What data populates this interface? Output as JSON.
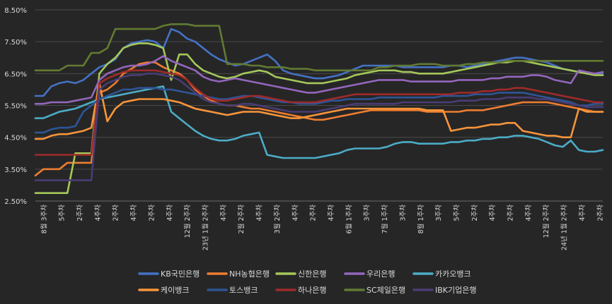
{
  "chart_data": {
    "type": "line",
    "title": "",
    "xlabel": "",
    "ylabel": "",
    "ylim": [
      2.5,
      8.5
    ],
    "ytick_labels": [
      "2.50%",
      "3.50%",
      "4.50%",
      "5.50%",
      "6.50%",
      "7.50%",
      "8.50%"
    ],
    "xtick_labels": [
      "8월 3주차",
      "5주차",
      "2주차",
      "4주차",
      "2주차",
      "4주차",
      "2주차",
      "4주차",
      "12월 2주차",
      "23년 1월 2주차",
      "4주차",
      "2월 2주차",
      "4주차",
      "3월 2주차",
      "4주차",
      "2주차",
      "4주차",
      "6월 1주차",
      "3주차",
      "7월 1주차",
      "3주차",
      "8월 1주차",
      "3주차",
      "5주차",
      "2주차",
      "4주차",
      "2주차",
      "4주차",
      "12월 2주차",
      "24년 1월 2주차",
      "4주차",
      "2주차"
    ],
    "grid": true,
    "legend_position": "bottom",
    "series": [
      {
        "name": "KB국민은행",
        "color": "#4472C4",
        "values": [
          5.8,
          5.8,
          6.1,
          6.2,
          6.25,
          6.2,
          6.3,
          6.5,
          6.7,
          6.8,
          6.95,
          7.3,
          7.45,
          7.5,
          7.55,
          7.5,
          7.3,
          7.9,
          7.8,
          7.6,
          7.5,
          7.3,
          7.1,
          6.95,
          6.85,
          6.75,
          6.8,
          6.9,
          7.0,
          7.1,
          6.9,
          6.6,
          6.5,
          6.45,
          6.4,
          6.35,
          6.35,
          6.4,
          6.45,
          6.55,
          6.65,
          6.75,
          6.75,
          6.75,
          6.75,
          6.75,
          6.7,
          6.7,
          6.7,
          6.7,
          6.7,
          6.7,
          6.75,
          6.75,
          6.7,
          6.75,
          6.8,
          6.85,
          6.9,
          6.95,
          7.0,
          7.0,
          6.95,
          6.9,
          6.85,
          6.75,
          6.65,
          6.6,
          6.55,
          6.5,
          6.5,
          6.5
        ]
      },
      {
        "name": "NH농협은행",
        "color": "#ED7D31",
        "values": [
          3.3,
          3.5,
          3.5,
          3.5,
          3.7,
          3.7,
          3.7,
          3.7,
          5.9,
          6.0,
          6.2,
          6.5,
          6.65,
          6.8,
          6.85,
          6.85,
          6.7,
          6.6,
          6.5,
          6.3,
          6.0,
          5.8,
          5.65,
          5.55,
          5.5,
          5.5,
          5.45,
          5.4,
          5.4,
          5.35,
          5.3,
          5.25,
          5.2,
          5.15,
          5.1,
          5.05,
          5.05,
          5.1,
          5.15,
          5.2,
          5.25,
          5.3,
          5.35,
          5.35,
          5.35,
          5.35,
          5.35,
          5.35,
          5.35,
          5.3,
          5.3,
          5.3,
          5.3,
          5.3,
          5.35,
          5.35,
          5.35,
          5.4,
          5.45,
          5.5,
          5.55,
          5.6,
          5.6,
          5.6,
          5.6,
          5.55,
          5.5,
          5.45,
          5.4,
          5.35,
          5.3,
          5.3
        ]
      },
      {
        "name": "신한은행",
        "color": "#A5C85A",
        "values": [
          2.75,
          2.75,
          2.75,
          2.75,
          2.75,
          4.0,
          4.0,
          4.0,
          6.5,
          6.8,
          7.0,
          7.3,
          7.4,
          7.45,
          7.45,
          7.4,
          7.3,
          6.3,
          7.1,
          7.1,
          6.8,
          6.6,
          6.5,
          6.4,
          6.35,
          6.4,
          6.5,
          6.55,
          6.6,
          6.55,
          6.4,
          6.35,
          6.3,
          6.25,
          6.2,
          6.2,
          6.2,
          6.25,
          6.3,
          6.35,
          6.45,
          6.5,
          6.55,
          6.6,
          6.6,
          6.6,
          6.55,
          6.55,
          6.5,
          6.5,
          6.5,
          6.5,
          6.55,
          6.6,
          6.65,
          6.7,
          6.75,
          6.8,
          6.85,
          6.85,
          6.9,
          6.9,
          6.85,
          6.8,
          6.75,
          6.7,
          6.65,
          6.6,
          6.55,
          6.5,
          6.45,
          6.45
        ]
      },
      {
        "name": "우리은행",
        "color": "#9466BD",
        "values": [
          5.55,
          5.55,
          5.6,
          5.6,
          5.6,
          5.65,
          5.7,
          5.75,
          6.3,
          6.5,
          6.6,
          6.7,
          6.75,
          6.75,
          6.8,
          6.9,
          7.05,
          6.9,
          6.8,
          6.7,
          6.6,
          6.4,
          6.3,
          6.25,
          6.3,
          6.35,
          6.3,
          6.25,
          6.2,
          6.15,
          6.1,
          6.05,
          6.0,
          5.95,
          5.9,
          5.9,
          5.95,
          6.0,
          6.05,
          6.1,
          6.15,
          6.2,
          6.25,
          6.3,
          6.3,
          6.3,
          6.3,
          6.25,
          6.25,
          6.25,
          6.25,
          6.25,
          6.25,
          6.3,
          6.3,
          6.3,
          6.3,
          6.35,
          6.35,
          6.4,
          6.4,
          6.4,
          6.45,
          6.45,
          6.4,
          6.3,
          6.25,
          6.2,
          6.6,
          6.55,
          6.5,
          6.55
        ]
      },
      {
        "name": "카카오뱅크",
        "color": "#4BACC6",
        "values": [
          5.1,
          5.1,
          5.2,
          5.3,
          5.35,
          5.4,
          5.5,
          5.6,
          5.7,
          5.75,
          5.8,
          5.85,
          5.9,
          5.95,
          6.0,
          6.05,
          6.1,
          5.3,
          5.1,
          4.9,
          4.7,
          4.55,
          4.45,
          4.4,
          4.4,
          4.45,
          4.55,
          4.6,
          4.65,
          3.95,
          3.9,
          3.85,
          3.85,
          3.85,
          3.85,
          3.85,
          3.9,
          3.95,
          4.0,
          4.1,
          4.15,
          4.15,
          4.15,
          4.15,
          4.2,
          4.3,
          4.35,
          4.35,
          4.3,
          4.3,
          4.3,
          4.3,
          4.35,
          4.35,
          4.4,
          4.4,
          4.45,
          4.45,
          4.5,
          4.5,
          4.55,
          4.55,
          4.5,
          4.45,
          4.35,
          4.25,
          4.2,
          4.4,
          4.1,
          4.05,
          4.05,
          4.1
        ]
      },
      {
        "name": "케이뱅크",
        "color": "#F7953B",
        "values": [
          4.45,
          4.45,
          4.55,
          4.6,
          4.6,
          4.65,
          4.7,
          4.8,
          6.2,
          5.0,
          5.4,
          5.6,
          5.65,
          5.7,
          5.7,
          5.7,
          5.7,
          5.65,
          5.6,
          5.5,
          5.4,
          5.35,
          5.3,
          5.25,
          5.2,
          5.25,
          5.3,
          5.3,
          5.3,
          5.25,
          5.2,
          5.15,
          5.1,
          5.1,
          5.15,
          5.2,
          5.25,
          5.3,
          5.35,
          5.4,
          5.4,
          5.4,
          5.4,
          5.4,
          5.4,
          5.4,
          5.4,
          5.4,
          5.4,
          5.35,
          5.35,
          5.35,
          4.7,
          4.75,
          4.8,
          4.8,
          4.85,
          4.9,
          4.9,
          4.95,
          4.95,
          4.7,
          4.65,
          4.6,
          4.55,
          4.55,
          4.5,
          4.5,
          5.4,
          5.3,
          5.3,
          5.3
        ]
      },
      {
        "name": "토스뱅크",
        "color": "#2E5597",
        "values": [
          4.65,
          4.65,
          4.75,
          4.8,
          4.8,
          4.85,
          5.3,
          5.5,
          5.7,
          5.8,
          5.9,
          6.0,
          6.0,
          6.05,
          6.05,
          6.05,
          6.0,
          6.0,
          5.95,
          5.9,
          5.85,
          5.8,
          5.75,
          5.7,
          5.7,
          5.75,
          5.8,
          5.8,
          5.75,
          5.7,
          5.65,
          5.6,
          5.6,
          5.55,
          5.55,
          5.55,
          5.6,
          5.65,
          5.65,
          5.7,
          5.7,
          5.7,
          5.7,
          5.75,
          5.75,
          5.75,
          5.75,
          5.75,
          5.75,
          5.75,
          5.75,
          5.8,
          5.8,
          5.8,
          5.8,
          5.85,
          5.85,
          5.85,
          5.9,
          5.9,
          5.9,
          5.9,
          5.85,
          5.8,
          5.75,
          5.7,
          5.65,
          5.6,
          5.5,
          5.5,
          5.55,
          5.55
        ]
      },
      {
        "name": "하나은행",
        "color": "#9E2A2A",
        "values": [
          3.95,
          3.95,
          3.95,
          3.95,
          3.95,
          3.95,
          3.95,
          3.95,
          6.2,
          6.35,
          6.45,
          6.55,
          6.6,
          6.6,
          6.6,
          6.6,
          6.55,
          6.5,
          6.45,
          6.3,
          6.05,
          5.85,
          5.7,
          5.65,
          5.65,
          5.7,
          5.75,
          5.8,
          5.8,
          5.75,
          5.7,
          5.65,
          5.6,
          5.6,
          5.6,
          5.6,
          5.65,
          5.7,
          5.75,
          5.8,
          5.85,
          5.85,
          5.85,
          5.85,
          5.85,
          5.85,
          5.85,
          5.85,
          5.85,
          5.85,
          5.85,
          5.85,
          5.85,
          5.9,
          5.9,
          5.9,
          5.95,
          5.95,
          6.0,
          6.0,
          6.05,
          6.05,
          6.0,
          5.95,
          5.9,
          5.85,
          5.8,
          5.75,
          5.7,
          5.65,
          5.6,
          5.6
        ]
      },
      {
        "name": "SC제일은행",
        "color": "#627A32",
        "values": [
          6.6,
          6.6,
          6.6,
          6.6,
          6.75,
          6.75,
          6.75,
          7.15,
          7.15,
          7.3,
          7.9,
          7.9,
          7.9,
          7.9,
          7.9,
          7.9,
          8.0,
          8.05,
          8.05,
          8.05,
          8.0,
          8.0,
          8.0,
          8.0,
          6.8,
          6.8,
          6.8,
          6.75,
          6.75,
          6.7,
          6.7,
          6.7,
          6.65,
          6.65,
          6.65,
          6.6,
          6.6,
          6.6,
          6.6,
          6.6,
          6.6,
          6.6,
          6.6,
          6.7,
          6.7,
          6.75,
          6.75,
          6.75,
          6.8,
          6.8,
          6.8,
          6.75,
          6.75,
          6.75,
          6.8,
          6.8,
          6.85,
          6.85,
          6.85,
          6.9,
          6.9,
          6.9,
          6.9,
          6.9,
          6.9,
          6.9,
          6.9,
          6.9,
          6.9,
          6.9,
          6.9,
          6.9
        ]
      },
      {
        "name": "IBK기업은행",
        "color": "#4A3C75",
        "values": [
          3.15,
          3.15,
          3.15,
          3.15,
          3.15,
          3.15,
          3.15,
          3.15,
          6.0,
          6.2,
          6.3,
          6.4,
          6.45,
          6.45,
          6.5,
          6.5,
          6.45,
          6.4,
          6.3,
          6.1,
          5.9,
          5.7,
          5.6,
          5.55,
          5.5,
          5.5,
          5.55,
          5.55,
          5.5,
          5.45,
          5.4,
          5.35,
          5.3,
          5.3,
          5.3,
          5.3,
          5.35,
          5.4,
          5.45,
          5.5,
          5.55,
          5.55,
          5.55,
          5.55,
          5.55,
          5.55,
          5.6,
          5.6,
          5.6,
          5.6,
          5.6,
          5.6,
          5.6,
          5.65,
          5.65,
          5.65,
          5.7,
          5.7,
          5.7,
          5.75,
          5.75,
          5.75,
          5.75,
          5.7,
          5.7,
          5.65,
          5.6,
          5.55,
          5.5,
          5.45,
          5.45,
          5.45
        ]
      }
    ]
  }
}
